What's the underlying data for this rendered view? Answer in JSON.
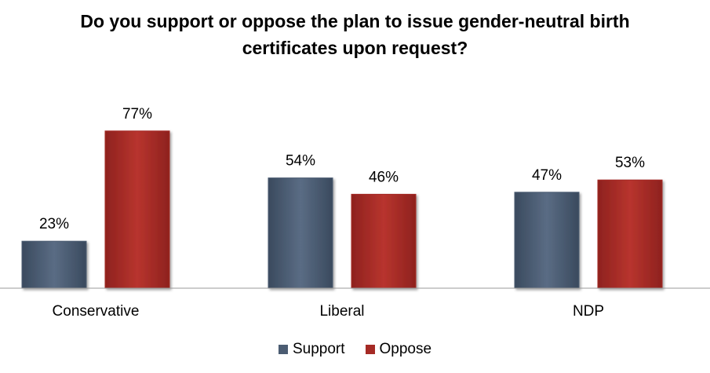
{
  "chart_data": {
    "type": "bar",
    "title_lines": [
      "Do you support or oppose the plan to issue gender-neutral birth",
      "certificates upon request?"
    ],
    "categories": [
      "Conservative",
      "Liberal",
      "NDP"
    ],
    "series": [
      {
        "name": "Support",
        "values": [
          23,
          54,
          47
        ],
        "labels": [
          "23%",
          "54%",
          "47%"
        ],
        "color": "#4b5c72"
      },
      {
        "name": "Oppose",
        "values": [
          77,
          46,
          53
        ],
        "labels": [
          "77%",
          "46%",
          "53%"
        ],
        "color": "#a52a25"
      }
    ],
    "ylim": [
      0,
      100
    ],
    "grid": false,
    "legend_position": "bottom"
  }
}
